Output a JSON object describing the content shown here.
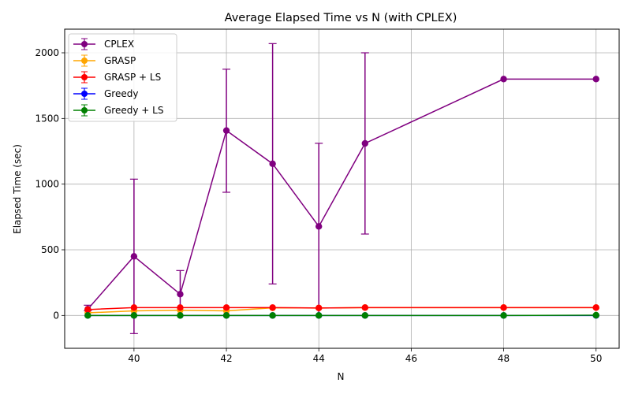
{
  "chart_data": {
    "type": "line",
    "title": "Average Elapsed Time vs N (with CPLEX)",
    "xlabel": "N",
    "ylabel": "Elapsed Time (sec)",
    "xlim": [
      38.5,
      50.5
    ],
    "ylim": [
      -250,
      2180
    ],
    "xticks": [
      40,
      42,
      44,
      46,
      48,
      50
    ],
    "yticks": [
      0,
      500,
      1000,
      1500,
      2000
    ],
    "grid": true,
    "legend_position": "top-left",
    "series": [
      {
        "name": "CPLEX",
        "color": "#800080",
        "x": [
          39,
          40,
          41,
          42,
          43,
          44,
          45,
          48,
          50
        ],
        "y": [
          48,
          450,
          162,
          1408,
          1155,
          678,
          1310,
          1800,
          1800
        ],
        "err_low": [
          12,
          588,
          162,
          470,
          915,
          678,
          690,
          0,
          0
        ],
        "err_high": [
          30,
          588,
          180,
          467,
          915,
          633,
          690,
          0,
          0
        ]
      },
      {
        "name": "GRASP",
        "color": "#ffa500",
        "x": [
          39,
          40,
          41,
          42,
          43,
          44,
          45,
          48,
          50
        ],
        "y": [
          20,
          35,
          40,
          35,
          58,
          57,
          60,
          60,
          60
        ],
        "err_low": [
          0,
          0,
          0,
          0,
          0,
          0,
          0,
          0,
          0
        ],
        "err_high": [
          0,
          0,
          0,
          0,
          0,
          0,
          0,
          0,
          0
        ]
      },
      {
        "name": "GRASP + LS",
        "color": "#ff0000",
        "x": [
          39,
          40,
          41,
          42,
          43,
          44,
          45,
          48,
          50
        ],
        "y": [
          45,
          60,
          60,
          60,
          60,
          57,
          60,
          60,
          60
        ],
        "err_low": [
          0,
          0,
          0,
          0,
          0,
          0,
          0,
          0,
          0
        ],
        "err_high": [
          0,
          0,
          0,
          0,
          0,
          0,
          0,
          0,
          0
        ]
      },
      {
        "name": "Greedy",
        "color": "#0000ff",
        "x": [
          39,
          40,
          41,
          42,
          43,
          44,
          45,
          48,
          50
        ],
        "y": [
          0,
          0,
          0,
          0,
          0,
          0,
          0,
          0,
          0
        ],
        "err_low": [
          0,
          0,
          0,
          0,
          0,
          0,
          0,
          0,
          0
        ],
        "err_high": [
          0,
          0,
          0,
          0,
          0,
          0,
          0,
          0,
          0
        ]
      },
      {
        "name": "Greedy + LS",
        "color": "#008000",
        "x": [
          39,
          40,
          41,
          42,
          43,
          44,
          45,
          48,
          50
        ],
        "y": [
          0,
          0,
          0,
          0,
          0,
          0,
          0,
          0,
          2
        ],
        "err_low": [
          0,
          0,
          0,
          0,
          0,
          0,
          0,
          0,
          0
        ],
        "err_high": [
          0,
          0,
          0,
          0,
          0,
          0,
          0,
          0,
          0
        ]
      }
    ]
  }
}
